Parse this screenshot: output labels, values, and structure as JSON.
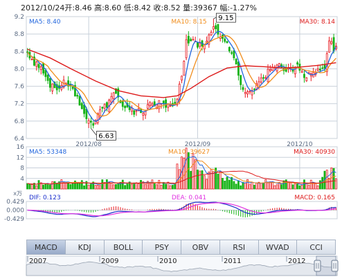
{
  "header": {
    "date": "2012/10/24",
    "open_label": "开:",
    "open": "8.46",
    "high_label": "高:",
    "high": "8.60",
    "low_label": "低:",
    "low": "8.42",
    "close_label": "收:",
    "close": "8.52",
    "volume_label": "量:",
    "volume": "39367",
    "change_label": "幅:",
    "change": "-1.27%"
  },
  "tabs": [
    "MACD",
    "KDJ",
    "BOLL",
    "PSY",
    "OBV",
    "RSI",
    "WVAD",
    "CCI"
  ],
  "active_tab": "MACD",
  "colors": {
    "up": "#e8171d",
    "down": "#17b317",
    "ma5": "#2266dd",
    "ma10": "#f08c1a",
    "ma30": "#dd1a1a",
    "dif": "#1a2ecc",
    "dea": "#e030e0",
    "grid": "#c8d0da",
    "axis_text": "#5a6a82"
  },
  "chart_data": [
    {
      "type": "candlestick",
      "legend": {
        "ma5": "MA5: 8.40",
        "ma10": "MA10: 8.15",
        "ma30": "MA30: 8.14"
      },
      "ylim": [
        6.4,
        9.2
      ],
      "y_ticks": [
        "9.2",
        "8.8",
        "8.4",
        "8.0",
        "7.6",
        "7.2",
        "6.8",
        "6.4"
      ],
      "x_ticks": [
        {
          "label": "2012/08",
          "index": 27
        },
        {
          "label": "2012/09",
          "index": 75
        },
        {
          "label": "2012/10",
          "index": 120
        }
      ],
      "annotations": [
        {
          "label": "9.15",
          "index": 82,
          "value": 9.15
        },
        {
          "label": "6.63",
          "index": 28,
          "value": 6.63
        }
      ],
      "anchors": [
        [
          0,
          8.35
        ],
        [
          3,
          8.15
        ],
        [
          6,
          8.0
        ],
        [
          8,
          7.75
        ],
        [
          10,
          7.65
        ],
        [
          13,
          7.55
        ],
        [
          16,
          7.7
        ],
        [
          19,
          7.6
        ],
        [
          22,
          7.3
        ],
        [
          24,
          7.05
        ],
        [
          26,
          6.85
        ],
        [
          28,
          6.7
        ],
        [
          30,
          6.85
        ],
        [
          33,
          7.05
        ],
        [
          36,
          7.25
        ],
        [
          39,
          7.45
        ],
        [
          42,
          7.2
        ],
        [
          45,
          7.05
        ],
        [
          48,
          7.0
        ],
        [
          51,
          7.05
        ],
        [
          54,
          7.15
        ],
        [
          57,
          7.25
        ],
        [
          60,
          7.2
        ],
        [
          63,
          7.1
        ],
        [
          66,
          7.3
        ],
        [
          68,
          7.9
        ],
        [
          70,
          8.6
        ],
        [
          72,
          8.7
        ],
        [
          75,
          8.55
        ],
        [
          78,
          8.55
        ],
        [
          80,
          8.75
        ],
        [
          82,
          8.95
        ],
        [
          84,
          8.85
        ],
        [
          86,
          8.7
        ],
        [
          88,
          8.55
        ],
        [
          90,
          8.35
        ],
        [
          92,
          8.1
        ],
        [
          94,
          7.7
        ],
        [
          96,
          7.5
        ],
        [
          98,
          7.45
        ],
        [
          100,
          7.55
        ],
        [
          102,
          7.75
        ],
        [
          105,
          7.85
        ],
        [
          108,
          8.05
        ],
        [
          110,
          8.15
        ],
        [
          113,
          7.9
        ],
        [
          116,
          8.0
        ],
        [
          119,
          8.05
        ],
        [
          122,
          7.85
        ],
        [
          125,
          7.9
        ],
        [
          128,
          7.95
        ],
        [
          131,
          8.05
        ],
        [
          132,
          8.35
        ],
        [
          133,
          8.7
        ],
        [
          134,
          8.55
        ],
        [
          135,
          8.45
        ],
        [
          136,
          8.52
        ]
      ],
      "ma30_path": [
        [
          0,
          8.45
        ],
        [
          10,
          8.25
        ],
        [
          20,
          7.98
        ],
        [
          30,
          7.72
        ],
        [
          40,
          7.5
        ],
        [
          50,
          7.38
        ],
        [
          60,
          7.34
        ],
        [
          66,
          7.38
        ],
        [
          72,
          7.55
        ],
        [
          80,
          7.82
        ],
        [
          88,
          8.02
        ],
        [
          96,
          8.07
        ],
        [
          104,
          8.05
        ],
        [
          112,
          8.02
        ],
        [
          120,
          8.04
        ],
        [
          128,
          8.08
        ],
        [
          136,
          8.14
        ]
      ]
    },
    {
      "type": "bar",
      "name": "volume",
      "unit": "x万",
      "legend": {
        "ma5": "MA5: 53348",
        "ma10": "MA10: 39627",
        "ma30": "MA30: 40930"
      },
      "ylim": [
        0,
        16
      ],
      "y_ticks": [
        "16",
        "12",
        "8",
        "4"
      ]
    },
    {
      "type": "macd",
      "legend": {
        "dif": "DIF: 0.123",
        "dea": "DEA: 0.041",
        "macd": "MACD: 0.165"
      },
      "ylim": [
        -0.429,
        0.429
      ],
      "y_ticks": [
        "0.429",
        "0.000",
        "-0.429"
      ]
    },
    {
      "type": "area",
      "name": "overview",
      "x_ticks": [
        "2007",
        "2009",
        "2010",
        "2011",
        "2012"
      ]
    }
  ]
}
